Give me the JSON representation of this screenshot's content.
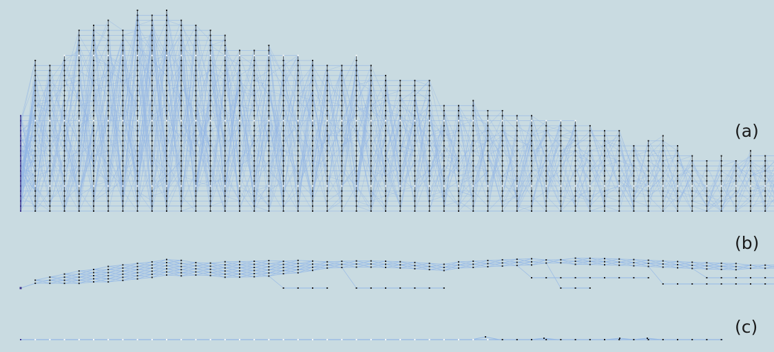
{
  "colors": {
    "background": "#c9dbe1",
    "edge": "#93b7e6",
    "node": "#1c1c1c",
    "root": "#3a2f8a",
    "highlight": "#ffffff"
  },
  "panels": [
    {
      "label": "(a)",
      "layout": "dense"
    },
    {
      "label": "(b)",
      "layout": "sparse"
    },
    {
      "label": "(c)",
      "layout": "linear"
    }
  ],
  "layers": {
    "a_node_counts": [
      20,
      31,
      30,
      32,
      37,
      38,
      39,
      37,
      41,
      40,
      41,
      39,
      38,
      37,
      36,
      33,
      33,
      34,
      32,
      32,
      31,
      30,
      30,
      32,
      30,
      28,
      27,
      27,
      27,
      22,
      22,
      23,
      21,
      21,
      20,
      20,
      19,
      19,
      19,
      18,
      17,
      17,
      14,
      15,
      16,
      14,
      12,
      11,
      12,
      11,
      13,
      12,
      12,
      13,
      13,
      13,
      14,
      14,
      14,
      13
    ],
    "b_groups": [
      {
        "base": 419,
        "counts": [
          1,
          1,
          1,
          1,
          1,
          1,
          1,
          1,
          1,
          1,
          1,
          1,
          1,
          1,
          1,
          1,
          1,
          1,
          1,
          1,
          1,
          1,
          1,
          1,
          1,
          1,
          1,
          1,
          1,
          1,
          1,
          1,
          1,
          1,
          1,
          1,
          1,
          1,
          1,
          1,
          1,
          1,
          1,
          1,
          1,
          1,
          1,
          1,
          1,
          1,
          1,
          1,
          1,
          1,
          1,
          1,
          1,
          1,
          1,
          1
        ]
      },
      {
        "base": 412,
        "counts": [
          0,
          2,
          3,
          4,
          5,
          5,
          6,
          6,
          6,
          6,
          6,
          6,
          5,
          5,
          6,
          6,
          6,
          6,
          5,
          5,
          4,
          3,
          3,
          3,
          3,
          3,
          3,
          3,
          3,
          3,
          3,
          3,
          3,
          3,
          3,
          3,
          2,
          2,
          3,
          3,
          3,
          3,
          3,
          3,
          3,
          3,
          3,
          3,
          3,
          3,
          2,
          2,
          2,
          3,
          3,
          3,
          3,
          3,
          2,
          2
        ]
      }
    ]
  }
}
